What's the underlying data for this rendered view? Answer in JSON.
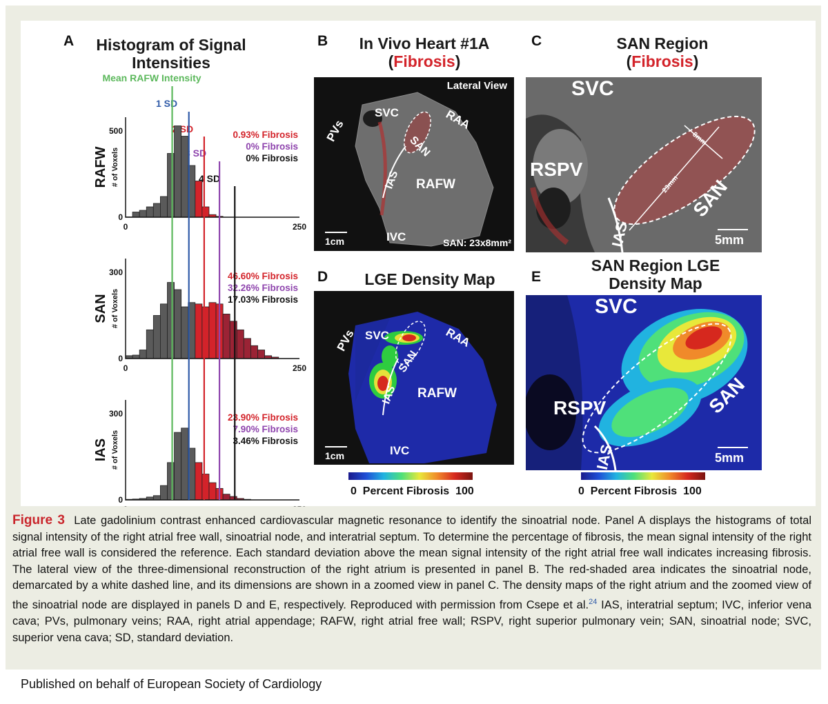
{
  "panel_a": {
    "letter": "A",
    "title_line1": "Histogram of Signal",
    "title_line2": "Intensities",
    "mean_label": "Mean RAFW Intensity",
    "sd_labels": [
      "1 SD",
      "2 SD",
      "3 SD",
      "4 SD"
    ],
    "y_axis_label": "# of Voxels"
  },
  "chart_data": [
    {
      "type": "bar",
      "region": "RAFW",
      "x_range": [
        0,
        250
      ],
      "ylim": [
        0,
        500
      ],
      "yticks": [
        0,
        500
      ],
      "xticks": [
        0,
        250
      ],
      "bins": [
        [
          0,
          10,
          2
        ],
        [
          10,
          20,
          30
        ],
        [
          20,
          30,
          40
        ],
        [
          30,
          40,
          60
        ],
        [
          40,
          50,
          80
        ],
        [
          50,
          60,
          120
        ],
        [
          60,
          70,
          370
        ],
        [
          70,
          80,
          530
        ],
        [
          80,
          90,
          470
        ],
        [
          90,
          100,
          300
        ],
        [
          100,
          110,
          210
        ],
        [
          110,
          120,
          60
        ],
        [
          120,
          130,
          15
        ],
        [
          130,
          140,
          5
        ]
      ],
      "stats": [
        "0.93% Fibrosis",
        "0% Fibrosis",
        "0% Fibrosis"
      ]
    },
    {
      "type": "bar",
      "region": "SAN",
      "x_range": [
        0,
        250
      ],
      "ylim": [
        0,
        300
      ],
      "yticks": [
        0,
        300
      ],
      "xticks": [
        0,
        250
      ],
      "bins": [
        [
          0,
          10,
          10
        ],
        [
          10,
          20,
          12
        ],
        [
          20,
          30,
          30
        ],
        [
          30,
          40,
          100
        ],
        [
          40,
          50,
          150
        ],
        [
          50,
          60,
          190
        ],
        [
          60,
          70,
          265
        ],
        [
          70,
          80,
          240
        ],
        [
          80,
          90,
          180
        ],
        [
          90,
          100,
          195
        ],
        [
          100,
          110,
          190
        ],
        [
          110,
          120,
          180
        ],
        [
          120,
          130,
          195
        ],
        [
          130,
          140,
          190
        ],
        [
          140,
          150,
          155
        ],
        [
          150,
          160,
          130
        ],
        [
          160,
          170,
          100
        ],
        [
          170,
          180,
          70
        ],
        [
          180,
          190,
          45
        ],
        [
          190,
          200,
          30
        ],
        [
          200,
          210,
          10
        ],
        [
          210,
          220,
          5
        ]
      ],
      "stats": [
        "46.60% Fibrosis",
        "32.26% Fibrosis",
        "17.03% Fibrosis"
      ]
    },
    {
      "type": "bar",
      "region": "IAS",
      "x_range": [
        0,
        250
      ],
      "ylim": [
        0,
        300
      ],
      "yticks": [
        0,
        300
      ],
      "xticks": [
        0,
        250
      ],
      "bins": [
        [
          0,
          10,
          2
        ],
        [
          10,
          20,
          3
        ],
        [
          20,
          30,
          5
        ],
        [
          30,
          40,
          10
        ],
        [
          40,
          50,
          15
        ],
        [
          50,
          60,
          50
        ],
        [
          60,
          70,
          130
        ],
        [
          70,
          80,
          235
        ],
        [
          80,
          90,
          250
        ],
        [
          90,
          100,
          180
        ],
        [
          100,
          110,
          130
        ],
        [
          110,
          120,
          90
        ],
        [
          120,
          130,
          60
        ],
        [
          130,
          140,
          40
        ],
        [
          140,
          150,
          20
        ],
        [
          150,
          160,
          12
        ],
        [
          160,
          170,
          5
        ],
        [
          170,
          180,
          2
        ]
      ],
      "stats": [
        "23.90% Fibrosis",
        "7.90% Fibrosis",
        "3.46% Fibrosis"
      ]
    }
  ],
  "panel_b": {
    "letter": "B",
    "title_line1": "In Vivo Heart #1A",
    "title_open": "(",
    "title_red": "Fibrosis",
    "title_close": ")",
    "view_label": "Lateral View",
    "labels": [
      "PVs",
      "SVC",
      "RAA",
      "SAN",
      "IAS",
      "RAFW",
      "IVC"
    ],
    "scale": "1cm",
    "size_label": "SAN: 23x8mm²"
  },
  "panel_c": {
    "letter": "C",
    "title_line1": "SAN Region",
    "title_open": "(",
    "title_red": "Fibrosis",
    "title_close": ")",
    "labels": [
      "SVC",
      "RSPV",
      "SAN",
      "IAS",
      "8mm",
      "23mm"
    ],
    "scale": "5mm"
  },
  "panel_d": {
    "letter": "D",
    "title": "LGE Density Map",
    "labels": [
      "PVs",
      "SVC",
      "RAA",
      "SAN",
      "IAS",
      "RAFW",
      "IVC"
    ],
    "scale": "1cm",
    "colorbar_min": "0",
    "colorbar_label": "Percent Fibrosis",
    "colorbar_max": "100"
  },
  "panel_e": {
    "letter": "E",
    "title_line1": "SAN Region LGE",
    "title_line2": "Density Map",
    "labels": [
      "SVC",
      "RSPV",
      "SAN",
      "IAS"
    ],
    "scale": "5mm",
    "colorbar_min": "0",
    "colorbar_label": "Percent Fibrosis",
    "colorbar_max": "100"
  },
  "caption": {
    "figure_label": "Figure 3",
    "text": "Late gadolinium contrast enhanced cardiovascular magnetic resonance to identify the sinoatrial node. Panel A displays the histograms of total signal intensity of the right atrial free wall, sinoatrial node, and interatrial septum. To determine the percentage of fibrosis, the mean signal intensity of the right atrial free wall is considered the reference. Each standard deviation above the mean signal intensity of the right atrial free wall indicates increasing fibrosis. The lateral view of the three-dimensional reconstruction of the right atrium is presented in panel B. The red-shaded area indicates the sinoatrial node, demarcated by a white dashed line, and its dimensions are shown in a zoomed view in panel C. The density maps of the right atrium and the zoomed view of the sinoatrial node are displayed in panels D and E, respectively. Reproduced with permission from Csepe et al.",
    "ref": "24",
    "text2": " IAS, interatrial septum; IVC, inferior vena cava; PVs, pulmonary veins; RAA, right atrial appendage; RAFW, right atrial free wall; RSPV, right superior pulmonary vein; SAN, sinoatrial node; SVC, superior vena cava; SD, standard deviation."
  },
  "footer": "Published on behalf of European Society of Cardiology",
  "colors": {
    "caption_red": "#c9262c",
    "fibrosis_red": "#d3232a",
    "mean_green": "#5cb85c",
    "sd1_blue": "#2f5aa8",
    "sd2_red": "#d3232a",
    "sd3_purple": "#8e44ad",
    "sd4_black": "#111111",
    "bar_gray": "#5a5a5a"
  }
}
